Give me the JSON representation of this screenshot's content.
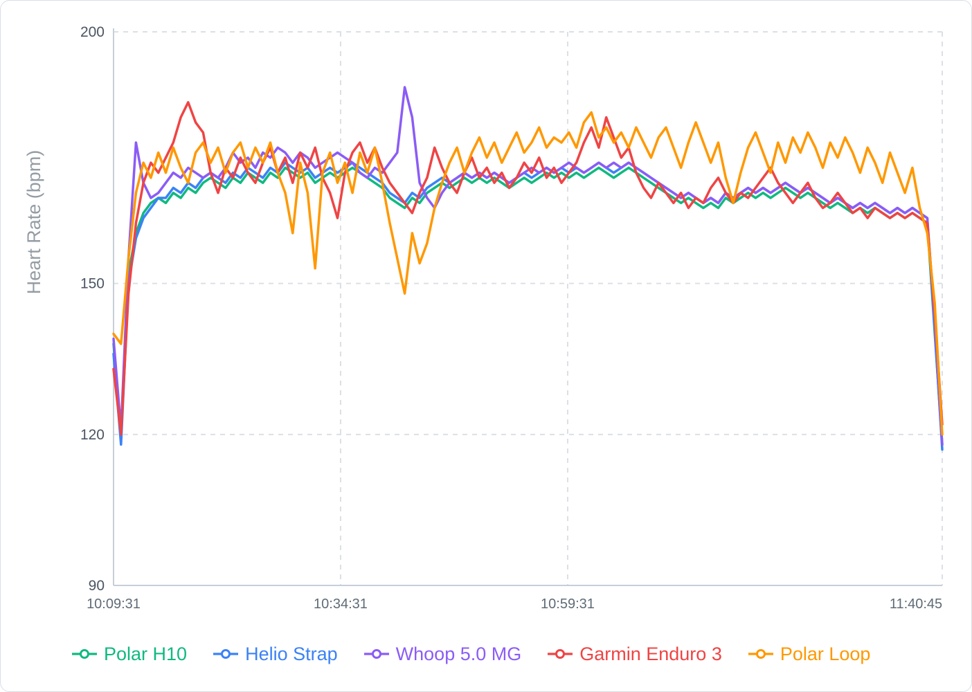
{
  "chart_data": {
    "type": "line",
    "title": "",
    "xlabel": "",
    "ylabel": "Heart Rate (bpm)",
    "ylim": [
      90,
      200
    ],
    "yticks": [
      90,
      120,
      150,
      200
    ],
    "xticks": [
      {
        "pos": 0.0,
        "label": "10:09:31"
      },
      {
        "pos": 0.274,
        "label": "10:34:31"
      },
      {
        "pos": 0.548,
        "label": "10:59:31"
      },
      {
        "pos": 1.0,
        "label": "11:40:45"
      }
    ],
    "grid": "dashed",
    "legend_position": "bottom",
    "series": [
      {
        "name": "Polar H10",
        "color": "#10b981",
        "values": [
          138,
          119,
          152,
          160,
          164,
          166,
          167,
          166,
          168,
          167,
          169,
          168,
          170,
          171,
          170,
          169,
          171,
          170,
          172,
          171,
          170,
          172,
          171,
          173,
          172,
          171,
          172,
          170,
          171,
          172,
          171,
          172,
          173,
          172,
          171,
          170,
          169,
          167,
          166,
          165,
          167,
          166,
          168,
          169,
          170,
          169,
          170,
          171,
          170,
          171,
          170,
          171,
          170,
          169,
          170,
          171,
          170,
          171,
          172,
          171,
          172,
          171,
          172,
          171,
          172,
          173,
          172,
          171,
          172,
          173,
          172,
          171,
          170,
          169,
          168,
          167,
          166,
          167,
          166,
          165,
          166,
          165,
          167,
          166,
          167,
          168,
          167,
          168,
          167,
          168,
          169,
          168,
          167,
          168,
          167,
          166,
          165,
          166,
          165,
          164,
          165,
          164,
          165,
          164,
          163,
          164,
          163,
          164,
          163,
          162,
          140,
          118
        ]
      },
      {
        "name": "Helio Strap",
        "color": "#3b82f6",
        "values": [
          136,
          118,
          150,
          159,
          163,
          165,
          167,
          167,
          169,
          168,
          170,
          169,
          171,
          172,
          171,
          170,
          172,
          171,
          173,
          172,
          171,
          173,
          172,
          174,
          173,
          172,
          173,
          171,
          172,
          173,
          172,
          173,
          174,
          173,
          172,
          171,
          170,
          168,
          167,
          166,
          168,
          167,
          169,
          170,
          171,
          170,
          171,
          172,
          171,
          172,
          171,
          172,
          171,
          170,
          171,
          172,
          171,
          172,
          173,
          172,
          173,
          172,
          173,
          172,
          173,
          174,
          173,
          172,
          173,
          174,
          173,
          172,
          171,
          170,
          169,
          168,
          167,
          168,
          167,
          166,
          167,
          166,
          168,
          167,
          168,
          169,
          168,
          169,
          168,
          169,
          170,
          169,
          168,
          169,
          168,
          167,
          166,
          167,
          166,
          165,
          166,
          165,
          166,
          165,
          164,
          165,
          164,
          165,
          164,
          163,
          141,
          117
        ]
      },
      {
        "name": "Whoop 5.0 MG",
        "color": "#8b5cf6",
        "values": [
          139,
          121,
          155,
          178,
          170,
          167,
          168,
          170,
          172,
          171,
          173,
          172,
          171,
          172,
          171,
          173,
          176,
          174,
          175,
          173,
          176,
          175,
          177,
          176,
          174,
          176,
          175,
          173,
          174,
          175,
          176,
          175,
          174,
          172,
          171,
          173,
          172,
          174,
          176,
          189,
          183,
          170,
          167,
          165,
          168,
          170,
          171,
          172,
          171,
          172,
          171,
          172,
          171,
          170,
          171,
          172,
          173,
          172,
          173,
          172,
          173,
          174,
          173,
          172,
          173,
          174,
          173,
          174,
          173,
          174,
          173,
          172,
          171,
          170,
          169,
          168,
          167,
          168,
          167,
          166,
          167,
          166,
          168,
          167,
          168,
          169,
          168,
          169,
          168,
          169,
          170,
          169,
          168,
          169,
          168,
          167,
          166,
          167,
          166,
          165,
          166,
          165,
          166,
          165,
          164,
          165,
          164,
          165,
          164,
          163,
          142,
          118
        ]
      },
      {
        "name": "Garmin Enduro 3",
        "color": "#ef4444",
        "values": [
          133,
          120,
          148,
          162,
          170,
          174,
          172,
          175,
          178,
          183,
          186,
          182,
          180,
          172,
          168,
          173,
          171,
          175,
          172,
          170,
          174,
          177,
          172,
          175,
          170,
          176,
          173,
          177,
          171,
          168,
          163,
          172,
          176,
          178,
          174,
          177,
          173,
          170,
          168,
          166,
          164,
          168,
          171,
          177,
          173,
          170,
          168,
          172,
          175,
          171,
          173,
          170,
          172,
          169,
          171,
          174,
          172,
          175,
          171,
          173,
          170,
          172,
          174,
          178,
          181,
          177,
          183,
          179,
          175,
          177,
          172,
          169,
          167,
          170,
          168,
          166,
          168,
          165,
          167,
          166,
          169,
          171,
          168,
          166,
          168,
          167,
          169,
          171,
          173,
          170,
          168,
          166,
          168,
          170,
          167,
          165,
          166,
          168,
          166,
          164,
          165,
          163,
          165,
          164,
          163,
          164,
          163,
          164,
          163,
          162,
          144,
          122
        ]
      },
      {
        "name": "Polar Loop",
        "color": "#ff9800",
        "values": [
          140,
          138,
          155,
          168,
          174,
          171,
          176,
          172,
          177,
          173,
          170,
          176,
          178,
          174,
          177,
          172,
          176,
          178,
          173,
          177,
          174,
          178,
          172,
          168,
          160,
          174,
          168,
          153,
          172,
          176,
          170,
          174,
          168,
          176,
          172,
          177,
          170,
          162,
          155,
          148,
          160,
          154,
          158,
          165,
          170,
          174,
          177,
          172,
          176,
          179,
          175,
          178,
          174,
          177,
          180,
          176,
          178,
          181,
          177,
          179,
          178,
          180,
          177,
          182,
          184,
          179,
          181,
          178,
          180,
          177,
          181,
          178,
          175,
          179,
          181,
          177,
          173,
          178,
          182,
          178,
          174,
          178,
          171,
          166,
          172,
          177,
          180,
          176,
          172,
          178,
          174,
          179,
          176,
          180,
          177,
          173,
          178,
          175,
          179,
          176,
          172,
          177,
          174,
          170,
          176,
          172,
          168,
          173,
          165,
          160,
          146,
          120
        ]
      }
    ]
  }
}
